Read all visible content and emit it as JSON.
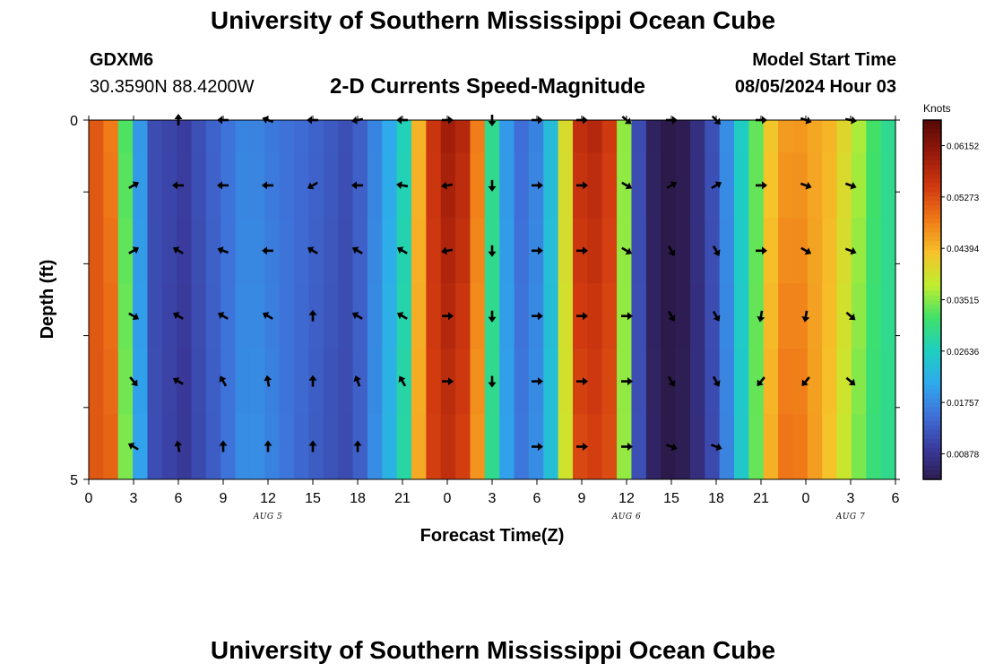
{
  "header": {
    "title": "University of Southern Mississippi Ocean Cube",
    "station_id": "GDXM6",
    "coordinates": "30.3590N  88.4200W",
    "model_start_label": "Model Start Time",
    "model_start_value": "08/05/2024 Hour 03"
  },
  "footer": {
    "title": "University of Southern Mississippi Ocean Cube"
  },
  "colors": {
    "arrow": "#000000",
    "colormap": [
      "#2b1a4a",
      "#3a3a9c",
      "#3f6fd8",
      "#2fa9ee",
      "#1ecfc0",
      "#3fe06a",
      "#bfee2f",
      "#f6c22a",
      "#f07a18",
      "#d13a10",
      "#9a1a0a",
      "#5a0a06"
    ]
  },
  "chart_data": {
    "type": "heatmap",
    "title": "2-D Currents Speed-Magnitude",
    "xlabel": "Forecast Time(Z)",
    "ylabel": "Depth (ft)",
    "colorbar_label": "Knots",
    "x_ticks": [
      "0",
      "3",
      "6",
      "9",
      "12",
      "15",
      "18",
      "21",
      "0",
      "3",
      "6",
      "9",
      "12",
      "15",
      "18",
      "21",
      "0",
      "3",
      "6"
    ],
    "date_labels": [
      {
        "label": "AUG 5",
        "hour": 12
      },
      {
        "label": "AUG 6",
        "hour": 36
      },
      {
        "label": "AUG 7",
        "hour": 51
      }
    ],
    "y_ticks": [
      "0",
      "5"
    ],
    "ylim": [
      0,
      5
    ],
    "xlim": [
      0,
      54
    ],
    "colorbar_ticks": [
      "0.06152",
      "0.05273",
      "0.04394",
      "0.03515",
      "0.02636",
      "0.01757",
      "0.00878"
    ],
    "colorbar_range": [
      0.0044,
      0.0659
    ],
    "speed_knots_by_hour": [
      0.052,
      0.05,
      0.034,
      0.02,
      0.012,
      0.011,
      0.01,
      0.012,
      0.014,
      0.016,
      0.018,
      0.018,
      0.017,
      0.016,
      0.015,
      0.014,
      0.013,
      0.012,
      0.014,
      0.018,
      0.022,
      0.028,
      0.045,
      0.055,
      0.058,
      0.056,
      0.048,
      0.03,
      0.02,
      0.016,
      0.018,
      0.024,
      0.04,
      0.055,
      0.056,
      0.054,
      0.036,
      0.012,
      0.006,
      0.004,
      0.005,
      0.008,
      0.012,
      0.018,
      0.026,
      0.034,
      0.044,
      0.048,
      0.048,
      0.046,
      0.044,
      0.04,
      0.036,
      0.032,
      0.03
    ],
    "depth_levels": 6,
    "arrows": {
      "times": [
        3,
        6,
        9,
        12,
        15,
        18,
        21,
        24,
        27,
        30,
        33,
        36,
        39,
        42,
        45,
        48,
        51
      ],
      "directions_deg": [
        [
          null,
          0,
          270,
          290,
          270,
          260,
          270,
          90,
          180,
          90,
          90,
          130,
          90,
          135,
          90,
          110,
          100
        ],
        [
          60,
          270,
          270,
          270,
          240,
          270,
          280,
          260,
          180,
          90,
          90,
          120,
          60,
          60,
          90,
          110,
          110
        ],
        [
          60,
          300,
          290,
          270,
          300,
          300,
          300,
          260,
          180,
          90,
          90,
          120,
          150,
          150,
          90,
          120,
          110
        ],
        [
          120,
          300,
          300,
          300,
          0,
          300,
          300,
          90,
          180,
          90,
          90,
          90,
          150,
          150,
          190,
          190,
          130
        ],
        [
          140,
          300,
          330,
          350,
          0,
          340,
          330,
          90,
          180,
          90,
          90,
          90,
          150,
          150,
          220,
          220,
          130
        ],
        [
          300,
          350,
          0,
          0,
          0,
          0,
          null,
          null,
          null,
          90,
          90,
          90,
          110,
          110,
          null,
          null,
          null
        ]
      ]
    }
  }
}
